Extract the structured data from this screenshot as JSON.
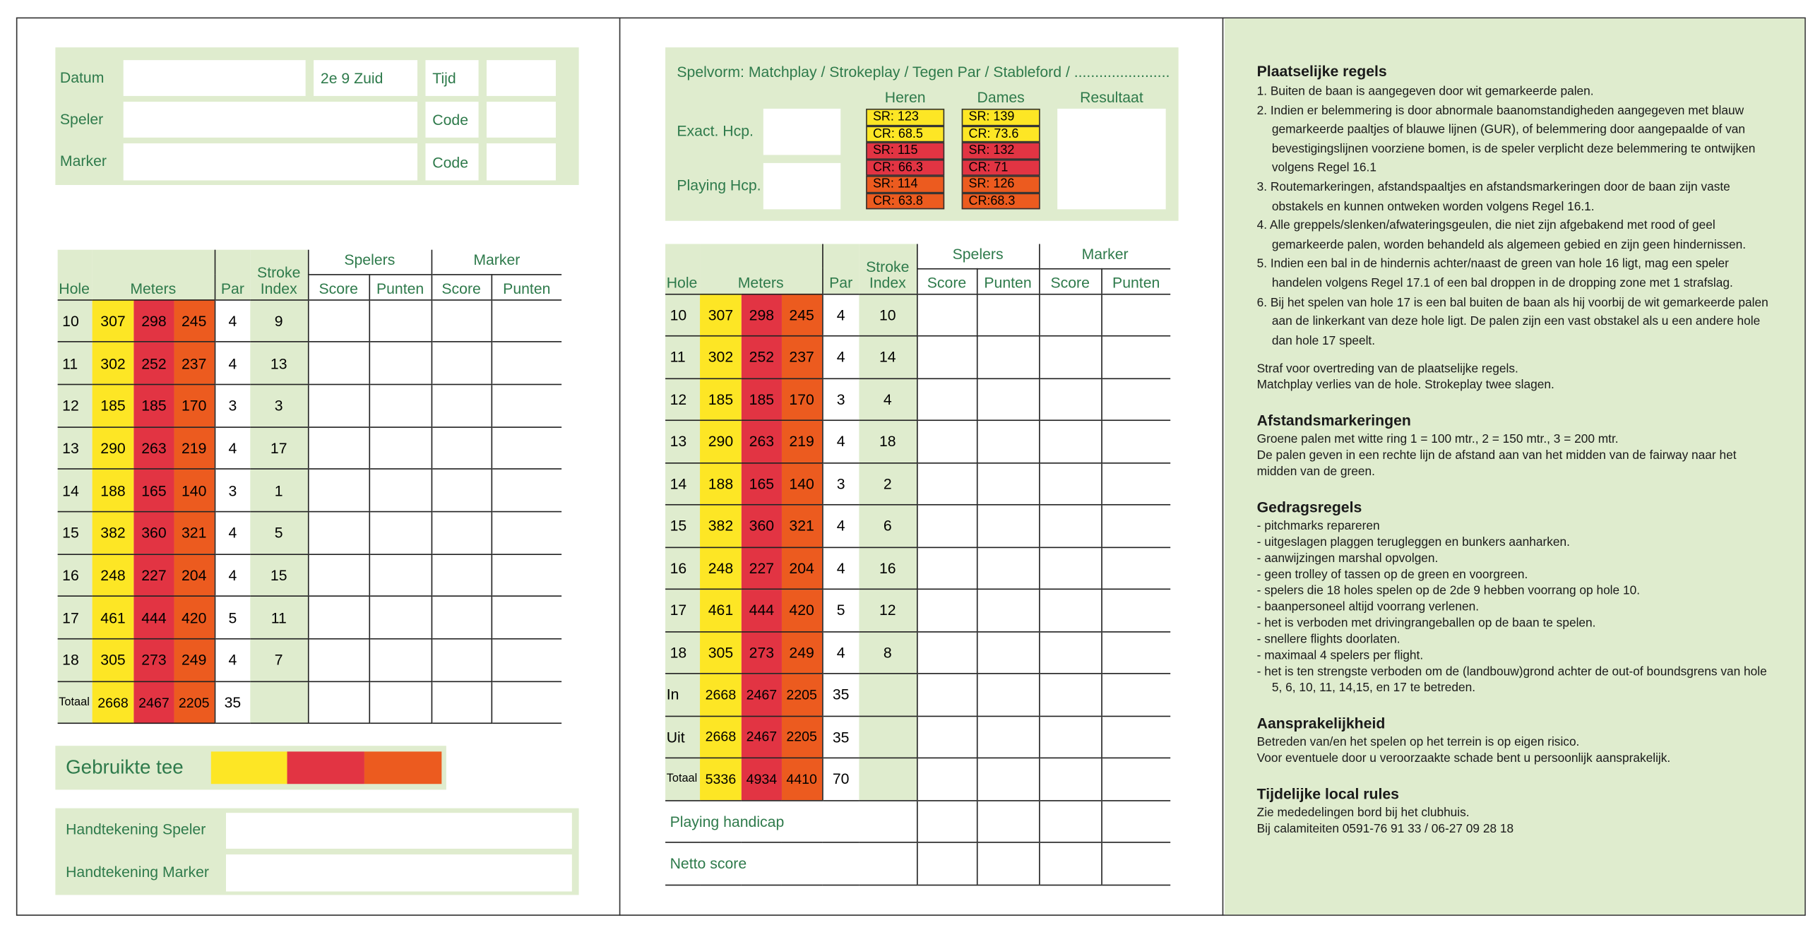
{
  "left": {
    "header": {
      "datum": "Datum",
      "course": "2e 9 Zuid",
      "tijd": "Tijd",
      "speler": "Speler",
      "code_1": "Code",
      "marker": "Marker",
      "code_2": "Code"
    },
    "table": {
      "headers": {
        "hole": "Hole",
        "meters": "Meters",
        "par": "Par",
        "stroke_index": "Stroke Index",
        "spelers": "Spelers",
        "marker": "Marker",
        "score_1": "Score",
        "punten_1": "Punten",
        "score_2": "Score",
        "punten_2": "Punten"
      },
      "rows": [
        {
          "hole": 10,
          "meters": [
            307,
            298,
            245
          ],
          "par": 4,
          "si": 9
        },
        {
          "hole": 11,
          "meters": [
            302,
            252,
            237
          ],
          "par": 4,
          "si": 13
        },
        {
          "hole": 12,
          "meters": [
            185,
            185,
            170
          ],
          "par": 3,
          "si": 3
        },
        {
          "hole": 13,
          "meters": [
            290,
            263,
            219
          ],
          "par": 4,
          "si": 17
        },
        {
          "hole": 14,
          "meters": [
            188,
            165,
            140
          ],
          "par": 3,
          "si": 1
        },
        {
          "hole": 15,
          "meters": [
            382,
            360,
            321
          ],
          "par": 4,
          "si": 5
        },
        {
          "hole": 16,
          "meters": [
            248,
            227,
            204
          ],
          "par": 4,
          "si": 15
        },
        {
          "hole": 17,
          "meters": [
            461,
            444,
            420
          ],
          "par": 5,
          "si": 11
        },
        {
          "hole": 18,
          "meters": [
            305,
            273,
            249
          ],
          "par": 4,
          "si": 7
        },
        {
          "hole": "Totaal",
          "meters": [
            2668,
            2467,
            2205
          ],
          "par": 35
        }
      ]
    },
    "tee_label": "Gebruikte tee",
    "signatures": [
      "Handtekening Speler",
      "Handtekening Marker"
    ]
  },
  "middle": {
    "spelvorm": "Spelvorm: Matchplay / Strokeplay / Tegen Par / Stableford / .......................",
    "heren": "Heren",
    "dames": "Dames",
    "resultaat": "Resultaat",
    "exact_hcp": "Exact. Hcp.",
    "playing_hcp": "Playing Hcp.",
    "ratings": {
      "heren": [
        "SR: 123",
        "CR: 68.5",
        "SR: 115",
        "CR: 66.3",
        "SR: 114",
        "CR: 63.8"
      ],
      "dames": [
        "SR: 139",
        "CR: 73.6",
        "SR: 132",
        "CR: 71",
        "SR: 126",
        "CR:68.3"
      ]
    },
    "table": {
      "headers": {
        "hole": "Hole",
        "meters": "Meters",
        "par": "Par",
        "stroke_index": "Stroke Index",
        "spelers": "Spelers",
        "marker": "Marker",
        "score_1": "Score",
        "punten_1": "Punten",
        "score_2": "Score",
        "punten_2": "Punten"
      },
      "rows": [
        {
          "hole": 10,
          "meters": [
            307,
            298,
            245
          ],
          "par": 4,
          "si": 10
        },
        {
          "hole": 11,
          "meters": [
            302,
            252,
            237
          ],
          "par": 4,
          "si": 14
        },
        {
          "hole": 12,
          "meters": [
            185,
            185,
            170
          ],
          "par": 3,
          "si": 4
        },
        {
          "hole": 13,
          "meters": [
            290,
            263,
            219
          ],
          "par": 4,
          "si": 18
        },
        {
          "hole": 14,
          "meters": [
            188,
            165,
            140
          ],
          "par": 3,
          "si": 2
        },
        {
          "hole": 15,
          "meters": [
            382,
            360,
            321
          ],
          "par": 4,
          "si": 6
        },
        {
          "hole": 16,
          "meters": [
            248,
            227,
            204
          ],
          "par": 4,
          "si": 16
        },
        {
          "hole": 17,
          "meters": [
            461,
            444,
            420
          ],
          "par": 5,
          "si": 12
        },
        {
          "hole": 18,
          "meters": [
            305,
            273,
            249
          ],
          "par": 4,
          "si": 8
        },
        {
          "hole": "In",
          "meters": [
            2668,
            2467,
            2205
          ],
          "par": 35
        },
        {
          "hole": "Uit",
          "meters": [
            2668,
            2467,
            2205
          ],
          "par": 35
        },
        {
          "hole": "Totaal",
          "meters": [
            5336,
            4934,
            4410
          ],
          "par": 70
        }
      ],
      "extra_rows": [
        "Playing handicap",
        "Netto score"
      ]
    }
  },
  "right": {
    "sections": [
      {
        "title": "Plaatselijke regels",
        "items": [
          "1. Buiten de baan is aangegeven door wit gemarkeerde palen.",
          "2. Indien er belemmering is door abnormale baanomstandigheden aangegeven met blauw gemarkeerde paaltjes of blauwe lijnen (GUR), of belemmering door aangepaalde of van bevestigingslijnen voorziene bomen, is de speler verplicht deze belemmering te ontwijken volgens Regel 16.1",
          "3. Routemarkeringen, afstandspaaltjes en afstandsmarkeringen door de baan zijn vaste obstakels en kunnen ontweken worden volgens Regel 16.1.",
          "4. Alle greppels/slenken/afwateringsgeulen, die niet zijn afgebakend met rood of geel gemarkeerde palen, worden behandeld als algemeen gebied en zijn geen hindernissen.",
          "5. Indien een bal in de hindernis achter/naast de green van hole 16 ligt, mag een speler handelen volgens Regel 17.1 of een bal droppen in de dropping zone met 1 strafslag.",
          "6. Bij het spelen van hole 17 is een bal buiten de baan als hij voorbij de wit gemarkeerde palen aan de linkerkant van deze hole ligt. De palen zijn een vast obstakel als u een andere hole dan hole 17 speelt."
        ],
        "notes": [
          "Straf voor overtreding van de plaatselijke regels.",
          "Matchplay verlies van de hole. Strokeplay twee slagen."
        ]
      },
      {
        "title": "Afstandsmarkeringen",
        "items": [],
        "notes": [
          "Groene palen met witte ring 1 = 100 mtr., 2 = 150 mtr., 3 = 200 mtr.",
          "De palen geven in een rechte lijn de afstand aan van het midden van de fairway naar het midden van de green."
        ]
      },
      {
        "title": "Gedragsregels",
        "items": [
          "-  pitchmarks  repareren",
          "-  uitgeslagen plaggen terugleggen en bunkers aanharken.",
          "-  aanwijzingen marshal opvolgen.",
          "-  geen trolley of tassen op de green en voorgreen.",
          "-  spelers die 18 holes spelen op de 2de 9 hebben voorrang op hole 10.",
          "-  baanpersoneel altijd voorrang verlenen.",
          "-  het is verboden met drivingrangeballen op de baan te spelen.",
          "-  snellere flights doorlaten.",
          "-  maximaal 4 spelers per flight.",
          "-  het is ten strengste verboden om de (landbouw)grond achter de out-of boundsgrens van hole 5, 6, 10, 11, 14,15, en 17 te betreden."
        ],
        "notes": []
      },
      {
        "title": "Aansprakelijkheid",
        "items": [],
        "notes": [
          "Betreden van/en het spelen op het terrein is op eigen risico.",
          "Voor eventuele door u veroorzaakte schade bent u persoonlijk aansprakelijk."
        ]
      },
      {
        "title": "Tijdelijke local rules",
        "items": [],
        "notes": [
          "Zie mededelingen bord bij het clubhuis.",
          "Bij calamiteiten 0591-76 91 33 / 06-27 09 28 18"
        ]
      }
    ]
  }
}
